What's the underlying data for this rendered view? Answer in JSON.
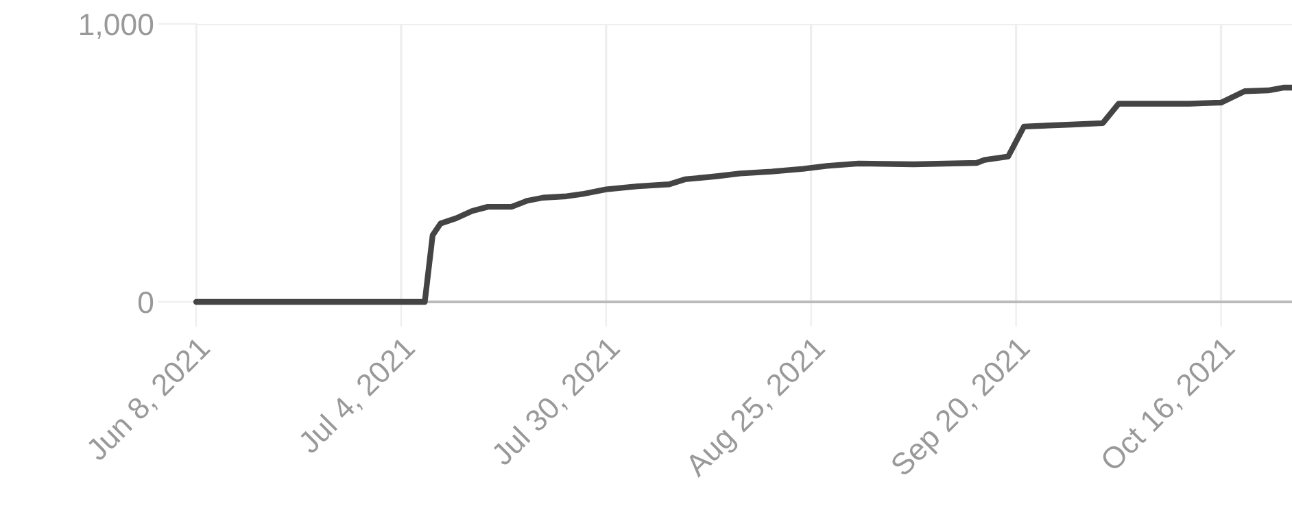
{
  "chart_data": {
    "type": "line",
    "x": [
      "2021-06-08",
      "2021-07-07",
      "2021-07-08",
      "2021-07-09",
      "2021-07-11",
      "2021-07-13",
      "2021-07-15",
      "2021-07-18",
      "2021-07-20",
      "2021-07-22",
      "2021-07-25",
      "2021-07-27",
      "2021-07-30",
      "2021-08-03",
      "2021-08-07",
      "2021-08-09",
      "2021-08-13",
      "2021-08-16",
      "2021-08-20",
      "2021-08-24",
      "2021-08-27",
      "2021-08-31",
      "2021-09-07",
      "2021-09-15",
      "2021-09-16",
      "2021-09-19",
      "2021-09-21",
      "2021-09-27",
      "2021-10-01",
      "2021-10-03",
      "2021-10-12",
      "2021-10-16",
      "2021-10-19",
      "2021-10-22",
      "2021-10-24",
      "2021-10-25"
    ],
    "series": [
      {
        "color": "#444444",
        "values": [
          0,
          0,
          240,
          282,
          301,
          327,
          342,
          342,
          364,
          375,
          380,
          388,
          405,
          416,
          423,
          441,
          452,
          462,
          469,
          479,
          489,
          498,
          495,
          500,
          511,
          523,
          631,
          638,
          643,
          713,
          713,
          717,
          758,
          761,
          771,
          771
        ]
      }
    ],
    "xlim": [
      "2021-06-08",
      "2021-10-25"
    ],
    "ylim": [
      0,
      1000
    ],
    "xticks": [
      {
        "value": "2021-06-08",
        "label": "Jun 8, 2021"
      },
      {
        "value": "2021-07-04",
        "label": "Jul 4, 2021"
      },
      {
        "value": "2021-07-30",
        "label": "Jul 30, 2021"
      },
      {
        "value": "2021-08-25",
        "label": "Aug 25, 2021"
      },
      {
        "value": "2021-09-20",
        "label": "Sep 20, 2021"
      },
      {
        "value": "2021-10-16",
        "label": "Oct 16, 2021"
      }
    ],
    "yticks": [
      0,
      {
        "value": 1000,
        "label": "1,000"
      }
    ],
    "grid": true
  }
}
